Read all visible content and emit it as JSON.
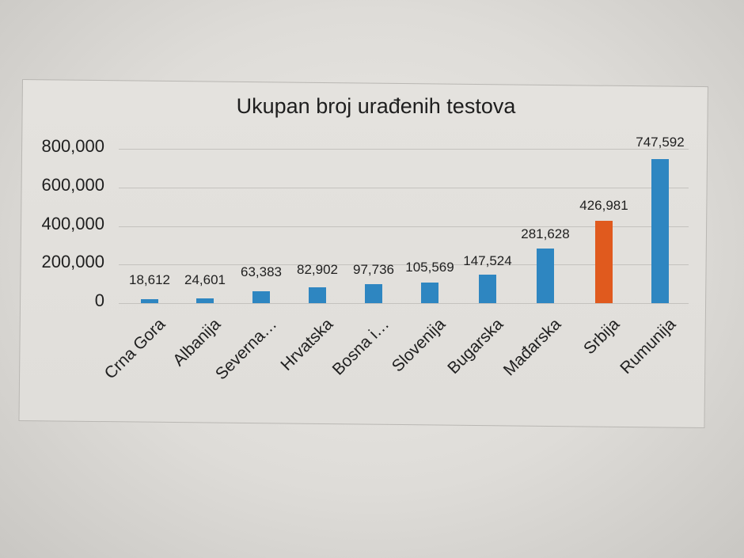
{
  "chart_data": {
    "type": "bar",
    "title": "Ukupan broj urađenih testova",
    "xlabel": "",
    "ylabel": "",
    "ylim": [
      0,
      800000
    ],
    "yticks": [
      "0",
      "200,000",
      "400,000",
      "600,000",
      "800,000"
    ],
    "grid": true,
    "legend": "none",
    "categories": [
      "Crna Gora",
      "Albanija",
      "Severna…",
      "Hrvatska",
      "Bosna i…",
      "Slovenija",
      "Bugarska",
      "Mađarska",
      "Srbija",
      "Rumunija"
    ],
    "values": [
      18612,
      24601,
      63383,
      82902,
      97736,
      105569,
      147524,
      281628,
      426981,
      747592
    ],
    "data_labels": [
      "18,612",
      "24,601",
      "63,383",
      "82,902",
      "97,736",
      "105,569",
      "147,524",
      "281,628",
      "426,981",
      "747,592"
    ],
    "colors": {
      "default": "#2e86c1",
      "highlight": "#e05a1e",
      "highlight_category": "Srbija"
    }
  },
  "ui": {
    "title": "Ukupan broj urađenih testova"
  }
}
